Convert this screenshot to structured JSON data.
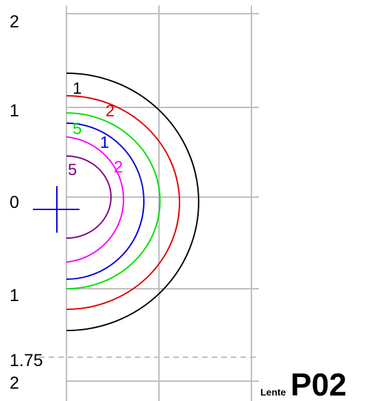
{
  "axis_labels": [
    "2",
    "1",
    "0",
    "1",
    "1.75",
    "2"
  ],
  "contour_labels": [
    "1",
    "2",
    "5",
    "1",
    "2",
    "5"
  ],
  "footer": {
    "prefix": "Lente",
    "code": "P02"
  }
}
